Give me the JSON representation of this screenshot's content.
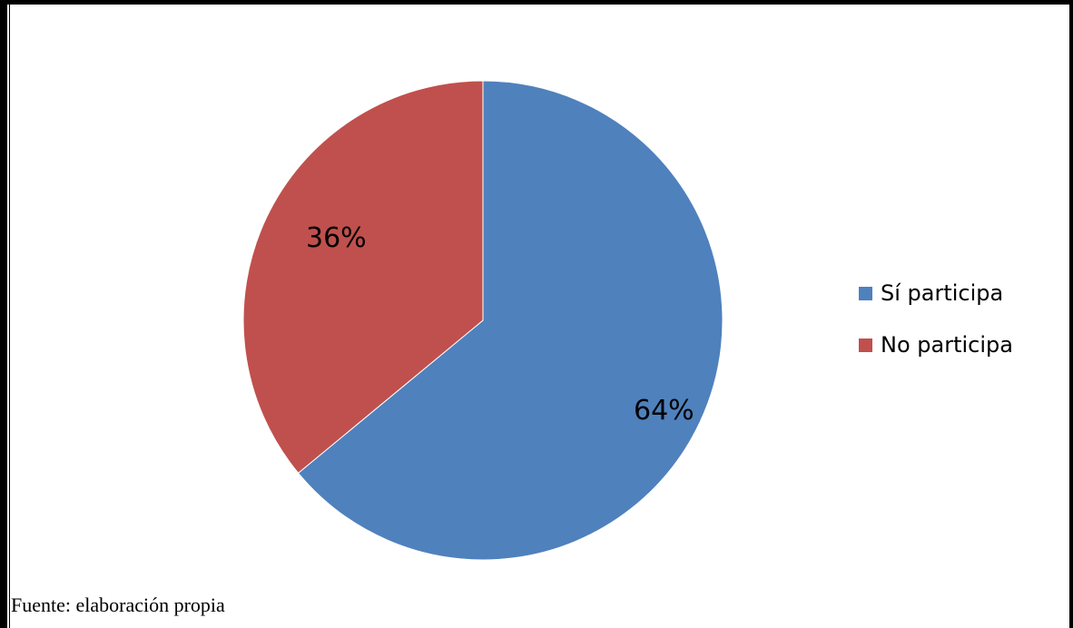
{
  "chart_data": {
    "type": "pie",
    "slices": [
      {
        "label": "Sí participa",
        "value": 64,
        "value_label": "64%",
        "color": "#4F81BD"
      },
      {
        "label": "No participa",
        "value": 36,
        "value_label": "36%",
        "color": "#C0504D"
      }
    ],
    "legend_position": "right",
    "start_angle": "top, clockwise"
  },
  "source_note": "Fuente: elaboración propia"
}
